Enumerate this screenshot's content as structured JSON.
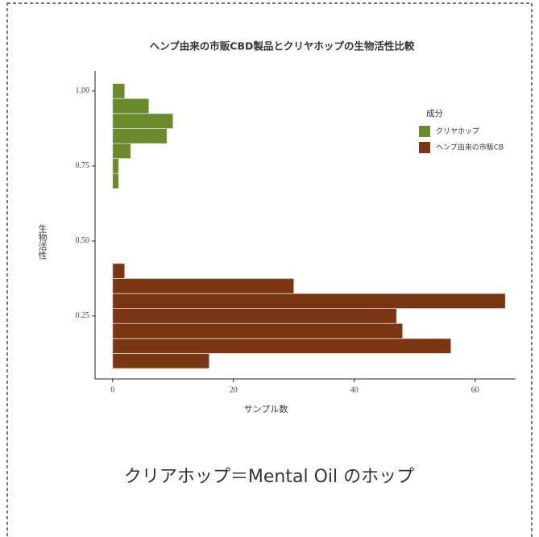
{
  "chart_data": {
    "type": "histogram",
    "orientation": "horizontal",
    "title": "ヘンプ由来の市販CBD製品とクリヤホップの生物活性比較",
    "xlabel": "サンプル数",
    "ylabel": "生物活性",
    "legend_title": "成分",
    "legend": "right",
    "bins": [
      0.075,
      0.125,
      0.175,
      0.225,
      0.275,
      0.325,
      0.375,
      0.425,
      0.475,
      0.525,
      0.575,
      0.625,
      0.675,
      0.725,
      0.775,
      0.825,
      0.875,
      0.925,
      0.975,
      1.025
    ],
    "series": [
      {
        "name": "クリヤホップ",
        "color": "#6a8a2c",
        "values": [
          0,
          0,
          0,
          0,
          0,
          0,
          0,
          0,
          0,
          0,
          0,
          0,
          1,
          1,
          3,
          9,
          10,
          6,
          2
        ]
      },
      {
        "name": "ヘンプ由来の市販CB",
        "color": "#7a3512",
        "values": [
          16,
          56,
          48,
          47,
          65,
          30,
          2,
          0,
          0,
          0,
          0,
          0,
          0,
          0,
          0,
          0,
          0,
          0,
          0
        ]
      }
    ],
    "xlim": [
      -2.9,
      66.7
    ],
    "xticks": [
      0,
      20,
      40,
      60
    ],
    "ylim": [
      0.04,
      1.067
    ],
    "yticks": [
      0.25,
      {
        "value": 0.5,
        "label": "0.50"
      },
      0.75,
      {
        "value": 1,
        "label": "1.00"
      }
    ]
  },
  "caption": "クリアホップ＝Mental Oil のホップ"
}
